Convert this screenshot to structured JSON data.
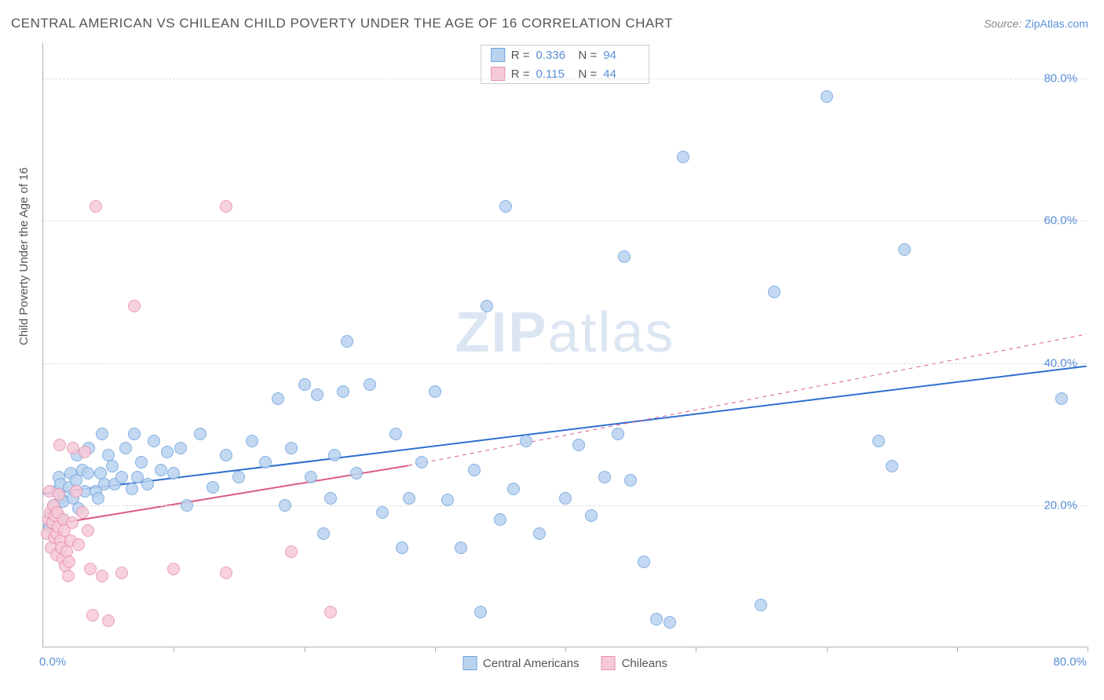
{
  "title": "CENTRAL AMERICAN VS CHILEAN CHILD POVERTY UNDER THE AGE OF 16 CORRELATION CHART",
  "source": {
    "label": "Source:",
    "site": "ZipAtlas.com"
  },
  "watermark": {
    "zip": "ZIP",
    "atlas": "atlas"
  },
  "chart": {
    "type": "scatter",
    "xlim": [
      0,
      80
    ],
    "ylim": [
      0,
      85
    ],
    "x_axis_label_min": "0.0%",
    "x_axis_label_max": "80.0%",
    "y_axis_label": "Child Poverty Under the Age of 16",
    "y_ticks": [
      {
        "v": 20,
        "label": "20.0%"
      },
      {
        "v": 40,
        "label": "40.0%"
      },
      {
        "v": 60,
        "label": "60.0%"
      },
      {
        "v": 80,
        "label": "80.0%"
      }
    ],
    "x_tick_positions": [
      10,
      20,
      30,
      40,
      50,
      60,
      70,
      80
    ],
    "grid_color": "#dddddd",
    "axis_color": "#b0b0b0",
    "background": "#ffffff",
    "marker_radius": 8,
    "series": [
      {
        "name": "Central Americans",
        "fill": "#b9d3ef",
        "stroke": "#6fa3dd",
        "fill_opacity": 0.55,
        "R": "0.336",
        "N": "94",
        "trend": {
          "x1": 0,
          "y1": 21.5,
          "x2": 80,
          "y2": 39.5,
          "color": "#2f6fd0",
          "width": 2,
          "dash_extend": false
        },
        "points": [
          [
            0.5,
            17
          ],
          [
            0.6,
            18.5
          ],
          [
            0.8,
            20
          ],
          [
            1,
            22
          ],
          [
            1,
            19
          ],
          [
            1.2,
            24
          ],
          [
            1.3,
            23
          ],
          [
            1.4,
            21
          ],
          [
            1.5,
            18
          ],
          [
            1.5,
            20.5
          ],
          [
            2,
            22.5
          ],
          [
            2.1,
            24.5
          ],
          [
            2.3,
            21
          ],
          [
            2.5,
            23.5
          ],
          [
            2.6,
            27
          ],
          [
            2.7,
            19.5
          ],
          [
            3,
            25
          ],
          [
            3.2,
            22
          ],
          [
            3.4,
            24.5
          ],
          [
            3.5,
            28
          ],
          [
            4,
            22
          ],
          [
            4.2,
            21
          ],
          [
            4.4,
            24.5
          ],
          [
            4.5,
            30
          ],
          [
            4.7,
            23
          ],
          [
            5,
            27
          ],
          [
            5.3,
            25.5
          ],
          [
            5.5,
            23
          ],
          [
            6,
            24
          ],
          [
            6.3,
            28
          ],
          [
            6.8,
            22.3
          ],
          [
            7,
            30
          ],
          [
            7.2,
            24
          ],
          [
            7.5,
            26
          ],
          [
            8,
            23
          ],
          [
            8.5,
            29
          ],
          [
            9,
            25
          ],
          [
            9.5,
            27.5
          ],
          [
            10,
            24.5
          ],
          [
            10.5,
            28
          ],
          [
            11,
            20
          ],
          [
            12,
            30
          ],
          [
            13,
            22.5
          ],
          [
            14,
            27
          ],
          [
            15,
            24
          ],
          [
            16,
            29
          ],
          [
            17,
            26
          ],
          [
            18,
            35
          ],
          [
            18.5,
            20
          ],
          [
            19,
            28
          ],
          [
            20,
            37
          ],
          [
            20.5,
            24
          ],
          [
            21,
            35.5
          ],
          [
            21.5,
            16
          ],
          [
            22,
            21
          ],
          [
            22.3,
            27
          ],
          [
            23,
            36
          ],
          [
            23.3,
            43
          ],
          [
            24,
            24.5
          ],
          [
            25,
            37
          ],
          [
            26,
            19
          ],
          [
            27,
            30
          ],
          [
            27.5,
            14
          ],
          [
            28,
            21
          ],
          [
            29,
            26
          ],
          [
            30,
            36
          ],
          [
            31,
            20.7
          ],
          [
            32,
            14
          ],
          [
            33,
            25
          ],
          [
            33.5,
            5
          ],
          [
            34,
            48
          ],
          [
            35,
            18
          ],
          [
            35.4,
            62
          ],
          [
            36,
            22.3
          ],
          [
            37,
            29
          ],
          [
            38,
            16
          ],
          [
            40,
            21
          ],
          [
            41,
            28.5
          ],
          [
            42,
            18.5
          ],
          [
            43,
            24
          ],
          [
            44,
            30
          ],
          [
            44.5,
            55
          ],
          [
            45,
            23.5
          ],
          [
            46,
            12
          ],
          [
            47,
            4
          ],
          [
            48,
            3.5
          ],
          [
            49,
            69
          ],
          [
            55,
            6
          ],
          [
            56,
            50
          ],
          [
            60,
            77.5
          ],
          [
            64,
            29
          ],
          [
            65,
            25.5
          ],
          [
            66,
            56
          ],
          [
            78,
            35
          ]
        ]
      },
      {
        "name": "Chileans",
        "fill": "#f6c9d7",
        "stroke": "#e88fb0",
        "fill_opacity": 0.55,
        "R": "0.115",
        "N": "44",
        "trend": {
          "x1": 0,
          "y1": 17,
          "x2": 28,
          "y2": 25.5,
          "color": "#db5a8a",
          "width": 2,
          "dash_extend": true,
          "dash_x2": 80,
          "dash_y2": 44
        },
        "points": [
          [
            0.3,
            16
          ],
          [
            0.4,
            18
          ],
          [
            0.5,
            22
          ],
          [
            0.55,
            19
          ],
          [
            0.6,
            14
          ],
          [
            0.7,
            17.5
          ],
          [
            0.8,
            20
          ],
          [
            0.85,
            15.5
          ],
          [
            0.9,
            18.5
          ],
          [
            1,
            16
          ],
          [
            1,
            13
          ],
          [
            1.1,
            19
          ],
          [
            1.15,
            17
          ],
          [
            1.2,
            21.5
          ],
          [
            1.25,
            28.5
          ],
          [
            1.3,
            15
          ],
          [
            1.4,
            14
          ],
          [
            1.5,
            12.5
          ],
          [
            1.55,
            18
          ],
          [
            1.6,
            16.5
          ],
          [
            1.7,
            11.5
          ],
          [
            1.8,
            13.5
          ],
          [
            1.9,
            10
          ],
          [
            2,
            12
          ],
          [
            2.1,
            15
          ],
          [
            2.2,
            17.5
          ],
          [
            2.3,
            28
          ],
          [
            2.5,
            22
          ],
          [
            2.7,
            14.5
          ],
          [
            3,
            19
          ],
          [
            3.2,
            27.5
          ],
          [
            3.4,
            16.5
          ],
          [
            3.6,
            11
          ],
          [
            3.8,
            4.5
          ],
          [
            4,
            62
          ],
          [
            4.5,
            10
          ],
          [
            5,
            3.7
          ],
          [
            6,
            10.5
          ],
          [
            7,
            48
          ],
          [
            10,
            11
          ],
          [
            14,
            62
          ],
          [
            14,
            10.5
          ],
          [
            19,
            13.5
          ],
          [
            22,
            5
          ]
        ]
      }
    ],
    "stats_box": {
      "r_label": "R =",
      "n_label": "N ="
    },
    "bottom_legend": [
      {
        "series": 0
      },
      {
        "series": 1
      }
    ]
  }
}
